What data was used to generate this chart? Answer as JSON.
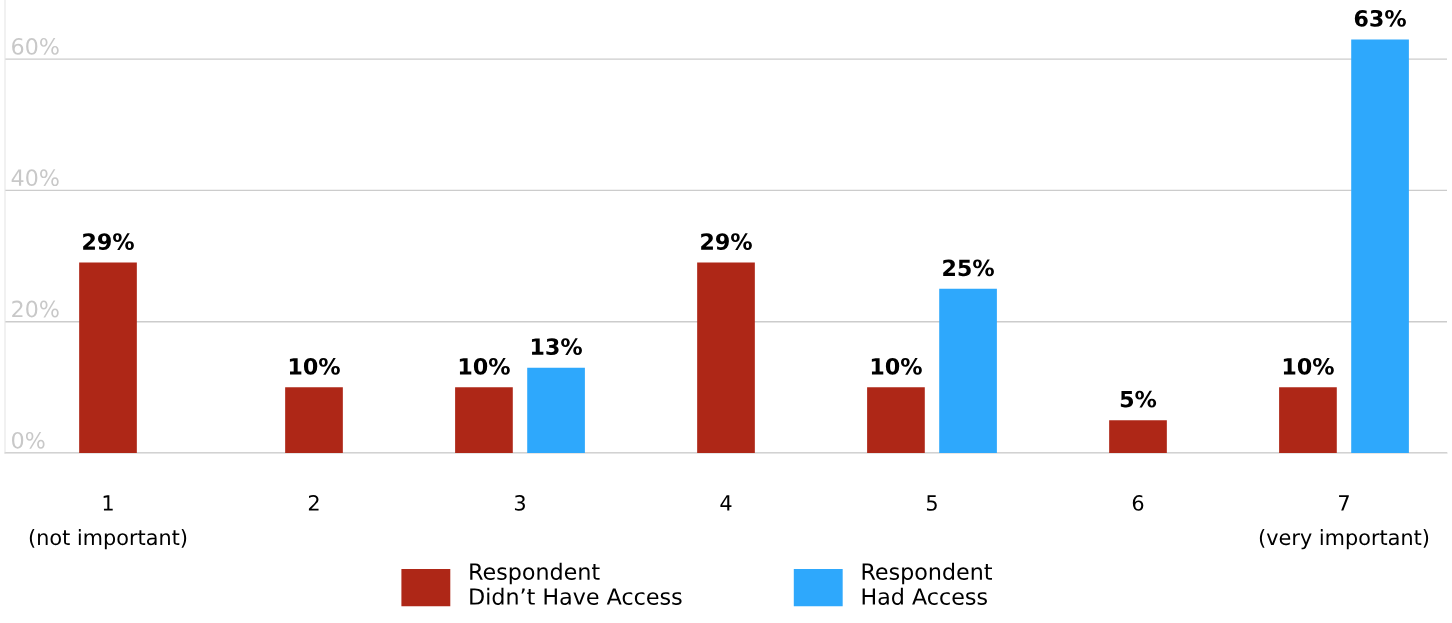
{
  "chart_data": {
    "type": "bar",
    "categories": [
      "1\n(not important)",
      "2",
      "3",
      "4",
      "5",
      "6",
      "7\n(very important)"
    ],
    "series": [
      {
        "name": "Respondent\nDidn’t Have Access",
        "color": "#ae2717",
        "values": [
          29,
          10,
          10,
          29,
          10,
          5,
          10
        ],
        "value_labels": [
          "29%",
          "10%",
          "10%",
          "29%",
          "10%",
          "5%",
          "10%"
        ]
      },
      {
        "name": "Respondent\nHad Access",
        "color": "#2ea8fc",
        "values": [
          null,
          null,
          13,
          null,
          25,
          null,
          63
        ],
        "value_labels": [
          null,
          null,
          "13%",
          null,
          "25%",
          null,
          "63%"
        ]
      }
    ],
    "ylim": [
      0,
      69
    ],
    "yticks": [
      {
        "value": 0,
        "label": "0%"
      },
      {
        "value": 20,
        "label": "20%"
      },
      {
        "value": 40,
        "label": "40%"
      },
      {
        "value": 60,
        "label": "60%"
      }
    ],
    "grid": "y",
    "legend": "bottom"
  }
}
